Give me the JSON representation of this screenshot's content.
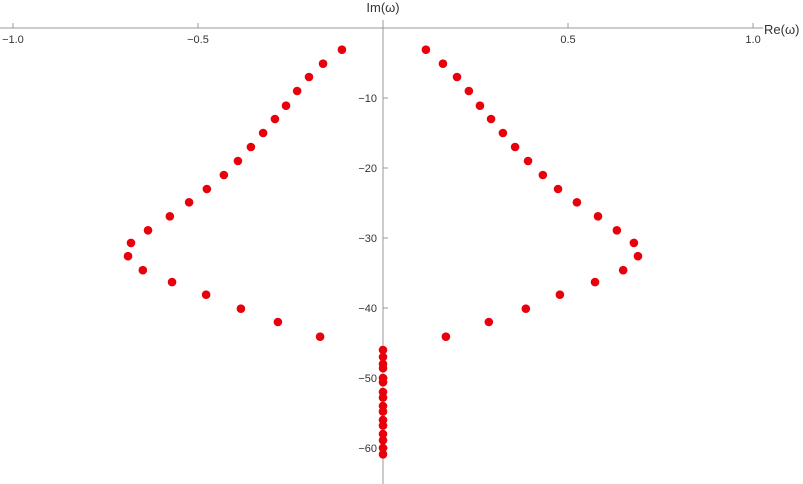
{
  "chart_data": {
    "type": "scatter",
    "x_label": "Re(ω)",
    "y_label": "Im(ω)",
    "x": [
      0.116,
      0.162,
      0.2,
      0.232,
      0.262,
      0.292,
      0.324,
      0.357,
      0.392,
      0.432,
      0.473,
      0.524,
      0.581,
      0.632,
      0.678,
      0.689,
      0.649,
      0.573,
      0.478,
      0.386,
      0.286,
      0.17,
      -0.111,
      -0.162,
      -0.2,
      -0.232,
      -0.262,
      -0.292,
      -0.324,
      -0.357,
      -0.392,
      -0.43,
      -0.476,
      -0.524,
      -0.576,
      -0.635,
      -0.681,
      -0.689,
      -0.649,
      -0.57,
      -0.478,
      -0.384,
      -0.284,
      -0.17,
      0,
      0,
      0,
      0,
      0,
      0,
      0,
      0,
      0,
      0,
      0,
      0,
      0,
      0,
      0,
      0
    ],
    "values": [
      -3.1,
      -5.1,
      -7.0,
      -9.0,
      -11.1,
      -13.0,
      -15.0,
      -17.0,
      -19.0,
      -21.0,
      -23.0,
      -24.9,
      -26.9,
      -28.9,
      -30.7,
      -32.6,
      -34.6,
      -36.3,
      -38.1,
      -40.1,
      -42.0,
      -44.1,
      -3.1,
      -5.1,
      -7.0,
      -9.0,
      -11.1,
      -13.0,
      -15.0,
      -17.0,
      -19.0,
      -21.0,
      -23.0,
      -24.9,
      -26.9,
      -28.9,
      -30.7,
      -32.6,
      -34.6,
      -36.3,
      -38.1,
      -40.1,
      -42.0,
      -44.1,
      -46.0,
      -47.0,
      -48.0,
      -48.6,
      -50.0,
      -50.6,
      -52.0,
      -52.8,
      -54.0,
      -54.8,
      -56.0,
      -56.8,
      -58.0,
      -58.9,
      -60.0,
      -60.9
    ],
    "color": "#e8000b",
    "xlim": [
      -1.035,
      1.135
    ],
    "ylim": [
      -64,
      0
    ],
    "xticks": [
      {
        "value": -1,
        "label": "−1.0"
      },
      {
        "value": -0.5,
        "label": "−0.5"
      },
      {
        "value": 0.5,
        "label": "0.5"
      },
      {
        "value": 1,
        "label": "1.0"
      }
    ],
    "yticks": [
      {
        "value": -10,
        "label": "−10"
      },
      {
        "value": -20,
        "label": "−20"
      },
      {
        "value": -30,
        "label": "−30"
      },
      {
        "value": -40,
        "label": "−40"
      },
      {
        "value": -50,
        "label": "−50"
      },
      {
        "value": -60,
        "label": "−60"
      }
    ]
  }
}
